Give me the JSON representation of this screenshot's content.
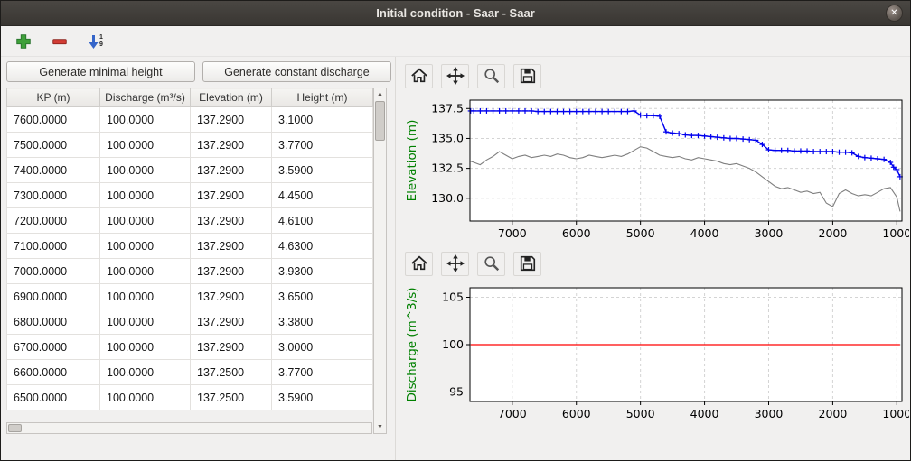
{
  "window": {
    "title": "Initial condition - Saar - Saar",
    "close_glyph": "✕"
  },
  "main_toolbar": {
    "icons": [
      "add-icon",
      "remove-icon",
      "sort-icon"
    ],
    "sort_digit_top": "1",
    "sort_digit_bottom": "9"
  },
  "left_panel": {
    "buttons": {
      "generate_minimal_height": "Generate minimal height",
      "generate_constant_discharge": "Generate constant discharge"
    },
    "table": {
      "headers": [
        "KP (m)",
        "Discharge (m³/s)",
        "Elevation (m)",
        "Height (m)"
      ],
      "rows": [
        [
          "7600.0000",
          "100.0000",
          "137.2900",
          "3.1000"
        ],
        [
          "7500.0000",
          "100.0000",
          "137.2900",
          "3.7700"
        ],
        [
          "7400.0000",
          "100.0000",
          "137.2900",
          "3.5900"
        ],
        [
          "7300.0000",
          "100.0000",
          "137.2900",
          "4.4500"
        ],
        [
          "7200.0000",
          "100.0000",
          "137.2900",
          "4.6100"
        ],
        [
          "7100.0000",
          "100.0000",
          "137.2900",
          "4.6300"
        ],
        [
          "7000.0000",
          "100.0000",
          "137.2900",
          "3.9300"
        ],
        [
          "6900.0000",
          "100.0000",
          "137.2900",
          "3.6500"
        ],
        [
          "6800.0000",
          "100.0000",
          "137.2900",
          "3.3800"
        ],
        [
          "6700.0000",
          "100.0000",
          "137.2900",
          "3.0000"
        ],
        [
          "6600.0000",
          "100.0000",
          "137.2500",
          "3.7700"
        ],
        [
          "6500.0000",
          "100.0000",
          "137.2500",
          "3.5900"
        ]
      ]
    },
    "scrollbar": {
      "up_glyph": "▲",
      "down_glyph": "▼"
    }
  },
  "right_panel": {
    "nav_icons": [
      "home-icon",
      "pan-icon",
      "zoom-icon",
      "save-icon"
    ]
  },
  "chart_data": [
    {
      "type": "line",
      "title": "",
      "xlabel": "",
      "ylabel": "Elevation (m)",
      "label_color": "#008000",
      "grid": true,
      "x_reversed": true,
      "xlim": [
        7660,
        920
      ],
      "ylim": [
        128.1,
        138.2
      ],
      "xticks": [
        7000,
        6000,
        5000,
        4000,
        3000,
        2000,
        1000
      ],
      "yticks": [
        130.0,
        132.5,
        135.0,
        137.5
      ],
      "ytick_labels": [
        "130.0",
        "132.5",
        "135.0",
        "137.5"
      ],
      "series": [
        {
          "name": "water-surface-elevation",
          "color": "#0000ee",
          "width": 1.4,
          "marker": "plus",
          "x": [
            7650,
            7600,
            7500,
            7400,
            7300,
            7200,
            7100,
            7000,
            6900,
            6800,
            6700,
            6600,
            6500,
            6400,
            6300,
            6200,
            6100,
            6000,
            5900,
            5800,
            5700,
            5600,
            5500,
            5400,
            5300,
            5200,
            5100,
            5000,
            4900,
            4800,
            4700,
            4600,
            4500,
            4400,
            4300,
            4200,
            4100,
            4000,
            3900,
            3800,
            3700,
            3600,
            3500,
            3400,
            3300,
            3200,
            3100,
            3000,
            2900,
            2800,
            2700,
            2600,
            2500,
            2400,
            2300,
            2200,
            2100,
            2000,
            1900,
            1800,
            1700,
            1600,
            1500,
            1400,
            1300,
            1200,
            1100,
            1050,
            1000,
            950
          ],
          "y": [
            137.3,
            137.3,
            137.3,
            137.3,
            137.3,
            137.3,
            137.3,
            137.3,
            137.3,
            137.3,
            137.3,
            137.25,
            137.25,
            137.25,
            137.25,
            137.25,
            137.25,
            137.25,
            137.25,
            137.25,
            137.25,
            137.25,
            137.25,
            137.25,
            137.25,
            137.25,
            137.3,
            136.95,
            136.9,
            136.9,
            136.85,
            135.55,
            135.45,
            135.4,
            135.3,
            135.25,
            135.25,
            135.2,
            135.15,
            135.1,
            135.05,
            135.0,
            135.0,
            134.95,
            134.9,
            134.85,
            134.5,
            134.05,
            134.0,
            134.0,
            134.0,
            133.95,
            133.95,
            133.95,
            133.9,
            133.9,
            133.9,
            133.9,
            133.85,
            133.85,
            133.8,
            133.5,
            133.4,
            133.35,
            133.3,
            133.25,
            133.0,
            132.6,
            132.4,
            131.8
          ]
        },
        {
          "name": "bed-elevation",
          "color": "#7f7f7f",
          "width": 1.1,
          "marker": "none",
          "x": [
            7650,
            7600,
            7500,
            7400,
            7300,
            7200,
            7100,
            7000,
            6900,
            6800,
            6700,
            6600,
            6500,
            6400,
            6300,
            6200,
            6100,
            6000,
            5900,
            5800,
            5700,
            5600,
            5500,
            5400,
            5300,
            5200,
            5100,
            5000,
            4900,
            4800,
            4700,
            4600,
            4500,
            4400,
            4300,
            4200,
            4100,
            4000,
            3900,
            3800,
            3700,
            3600,
            3500,
            3400,
            3300,
            3200,
            3100,
            3000,
            2900,
            2800,
            2700,
            2600,
            2500,
            2400,
            2300,
            2200,
            2100,
            2000,
            1900,
            1800,
            1700,
            1600,
            1500,
            1400,
            1300,
            1200,
            1100,
            1000,
            950
          ],
          "y": [
            133.1,
            133.0,
            132.8,
            133.2,
            133.5,
            133.9,
            133.6,
            133.3,
            133.5,
            133.6,
            133.4,
            133.5,
            133.6,
            133.5,
            133.7,
            133.6,
            133.4,
            133.3,
            133.4,
            133.6,
            133.5,
            133.4,
            133.5,
            133.6,
            133.5,
            133.7,
            134.0,
            134.3,
            134.2,
            133.9,
            133.6,
            133.5,
            133.4,
            133.5,
            133.3,
            133.2,
            133.4,
            133.3,
            133.2,
            133.1,
            132.9,
            132.8,
            132.9,
            132.7,
            132.5,
            132.2,
            131.8,
            131.4,
            131.0,
            130.8,
            130.9,
            130.7,
            130.5,
            130.6,
            130.4,
            130.5,
            129.6,
            129.3,
            130.4,
            130.7,
            130.4,
            130.2,
            130.3,
            130.2,
            130.5,
            130.8,
            130.9,
            130.1,
            128.9
          ]
        }
      ]
    },
    {
      "type": "line",
      "title": "",
      "xlabel": "",
      "ylabel": "Discharge (m^3/s)",
      "label_color": "#008000",
      "grid": true,
      "x_reversed": true,
      "xlim": [
        7660,
        920
      ],
      "ylim": [
        94,
        106
      ],
      "xticks": [
        7000,
        6000,
        5000,
        4000,
        3000,
        2000,
        1000
      ],
      "yticks": [
        95,
        100,
        105
      ],
      "ytick_labels": [
        "95",
        "100",
        "105"
      ],
      "series": [
        {
          "name": "constant-discharge",
          "color": "#ff0000",
          "width": 1.3,
          "marker": "none",
          "x": [
            7650,
            950
          ],
          "y": [
            100,
            100
          ]
        }
      ]
    }
  ]
}
